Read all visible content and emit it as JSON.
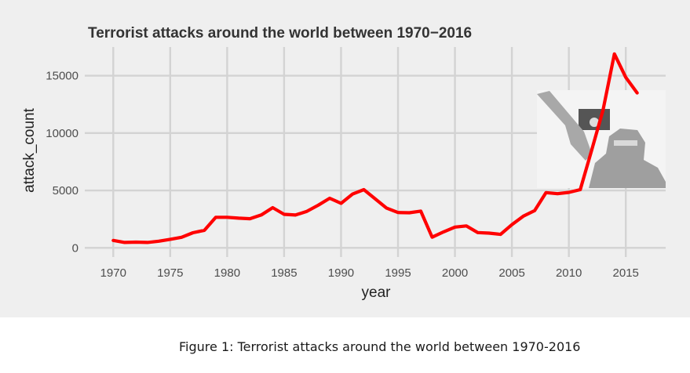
{
  "caption": "Figure 1: Terrorist attacks around the world between 1970-2016",
  "chart_data": {
    "type": "line",
    "title": "Terrorist attacks around the world between 1970−2016",
    "xlabel": "year",
    "ylabel": "attack_count",
    "xlim": [
      1967.5,
      2018.5
    ],
    "ylim": [
      -800,
      17500
    ],
    "x_ticks": [
      1970,
      1975,
      1980,
      1985,
      1990,
      1995,
      2000,
      2005,
      2010,
      2015
    ],
    "y_ticks": [
      0,
      5000,
      10000,
      15000
    ],
    "x_tick_labels": [
      "1970",
      "1975",
      "1980",
      "1985",
      "1990",
      "1995",
      "2000",
      "2005",
      "2010",
      "2015"
    ],
    "y_tick_labels": [
      "0",
      "5000",
      "10000",
      "15000"
    ],
    "grid": true,
    "line_color": "#ff0000",
    "background_color": "#efefef",
    "grid_color": "#d3d3d3",
    "series": [
      {
        "x": [
          1970,
          1971,
          1972,
          1973,
          1974,
          1975,
          1976,
          1977,
          1978,
          1979,
          1980,
          1981,
          1982,
          1983,
          1984,
          1985,
          1986,
          1987,
          1988,
          1989,
          1990,
          1991,
          1992,
          1994,
          1995,
          1996,
          1997,
          1998,
          1999,
          2000,
          2001,
          2002,
          2003,
          2004,
          2005,
          2006,
          2007,
          2008,
          2009,
          2010,
          2011,
          2012,
          2013,
          2014,
          2015,
          2016
        ],
        "y": [
          650,
          470,
          500,
          470,
          580,
          740,
          920,
          1320,
          1530,
          2660,
          2660,
          2590,
          2540,
          2870,
          3500,
          2920,
          2860,
          3180,
          3720,
          4320,
          3880,
          4680,
          5070,
          3460,
          3080,
          3060,
          3200,
          930,
          1390,
          1810,
          1910,
          1330,
          1280,
          1170,
          2020,
          2760,
          3250,
          4810,
          4720,
          4830,
          5070,
          8500,
          12000,
          16900,
          14850,
          13500
        ]
      }
    ],
    "inset_image": "terrorist-with-flag-silhouette-photo"
  }
}
